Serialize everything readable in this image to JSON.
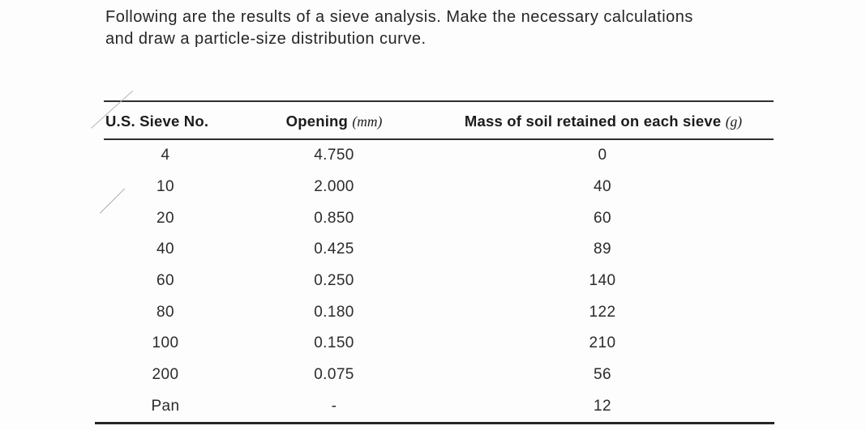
{
  "problem_statement": {
    "line1": "Following are the results of a sieve analysis. Make the necessary calculations",
    "line2": "and draw a particle-size distribution curve."
  },
  "table": {
    "headers": [
      {
        "label": "U.S. Sieve No.",
        "unit": ""
      },
      {
        "label": "Opening",
        "unit": "(mm)"
      },
      {
        "label": "Mass of soil retained on each sieve",
        "unit": "(g)"
      }
    ],
    "rows": [
      {
        "sieve_no": "4",
        "opening_mm": "4.750",
        "mass_g": "0"
      },
      {
        "sieve_no": "10",
        "opening_mm": "2.000",
        "mass_g": "40"
      },
      {
        "sieve_no": "20",
        "opening_mm": "0.850",
        "mass_g": "60"
      },
      {
        "sieve_no": "40",
        "opening_mm": "0.425",
        "mass_g": "89"
      },
      {
        "sieve_no": "60",
        "opening_mm": "0.250",
        "mass_g": "140"
      },
      {
        "sieve_no": "80",
        "opening_mm": "0.180",
        "mass_g": "122"
      },
      {
        "sieve_no": "100",
        "opening_mm": "0.150",
        "mass_g": "210"
      },
      {
        "sieve_no": "200",
        "opening_mm": "0.075",
        "mass_g": "56"
      },
      {
        "sieve_no": "Pan",
        "opening_mm": "-",
        "mass_g": "12"
      }
    ]
  },
  "colors": {
    "background": "#fdfdfd",
    "text": "#262626",
    "table_rule": "#2e2e2e",
    "pencil_mark": "#aaaaaa"
  }
}
